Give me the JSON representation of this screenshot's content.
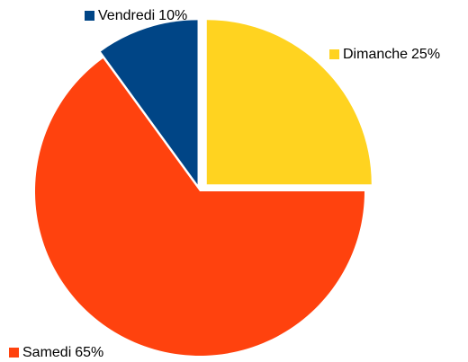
{
  "chart_data": {
    "type": "pie",
    "categories": [
      "Dimanche",
      "Samedi",
      "Vendredi"
    ],
    "values": [
      25,
      65,
      10
    ],
    "value_labels": [
      "25%",
      "65%",
      "10%"
    ],
    "colors": [
      "#ffd320",
      "#ff420e",
      "#004586"
    ]
  }
}
